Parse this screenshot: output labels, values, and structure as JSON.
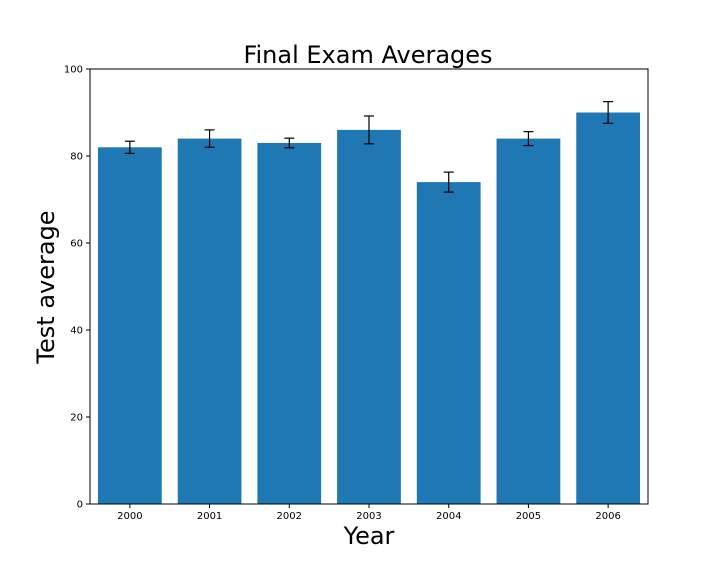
{
  "chart_data": {
    "type": "bar",
    "title": "Final Exam Averages",
    "xlabel": "Year",
    "ylabel": "Test average",
    "categories": [
      "2000",
      "2001",
      "2002",
      "2003",
      "2004",
      "2005",
      "2006"
    ],
    "values": [
      82,
      84,
      83,
      86,
      74,
      84,
      90
    ],
    "errors": [
      1.4,
      2.0,
      1.1,
      3.2,
      2.3,
      1.6,
      2.5
    ],
    "ylim": [
      0,
      100
    ],
    "yticks": [
      0,
      20,
      40,
      60,
      80,
      100
    ],
    "grid": false,
    "colors": {
      "bar": "#1f77b4",
      "error": "#000000"
    }
  }
}
